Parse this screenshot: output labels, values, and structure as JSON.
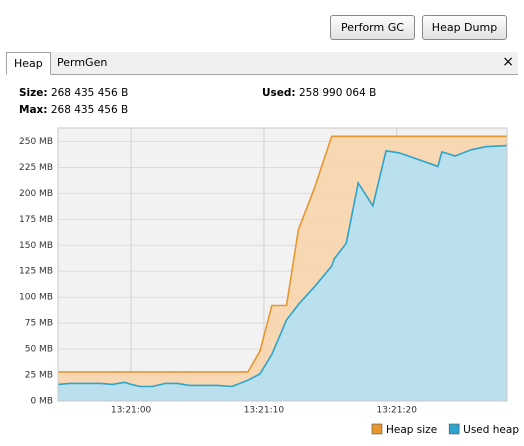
{
  "buttons": [
    "Perform GC",
    "Heap Dump"
  ],
  "tabs": [
    "Heap",
    "PermGen"
  ],
  "info": {
    "size_label": "Size:",
    "size": "268 435 456 B",
    "max_label": "Max:",
    "max": "268 435 456 B",
    "used_label": "Used:",
    "used": "258 990 064 B"
  },
  "chart_data": {
    "type": "area",
    "x": [
      -5.5,
      -4.6,
      -3.5,
      -2.3,
      -1.4,
      -0.5,
      0,
      0.7,
      1.6,
      2.6,
      3.5,
      4.4,
      6.5,
      7.6,
      8.8,
      9.7,
      10.6,
      11.7,
      12.6,
      13.8,
      15.1,
      15.3,
      16.2,
      17.1,
      18.2,
      19.2,
      20.2,
      23.1,
      23.4,
      24.4,
      25.6,
      26.7,
      28.3
    ],
    "series": [
      {
        "name": "Heap size",
        "color": "#e8962e",
        "fill": "#f8d3a8",
        "values": [
          28,
          28,
          28,
          28,
          28,
          28,
          28,
          28,
          28,
          28,
          28,
          28,
          28,
          28,
          28,
          48,
          92,
          92,
          165,
          205,
          255,
          255,
          255,
          255,
          255,
          255,
          255,
          255,
          255,
          255,
          255,
          255,
          255
        ]
      },
      {
        "name": "Used heap",
        "color": "#2ea3cc",
        "fill": "#aee2f6",
        "values": [
          16,
          17,
          17,
          17,
          16,
          18,
          16,
          14,
          14,
          17,
          17,
          15,
          15,
          14,
          20,
          26,
          45,
          78,
          93,
          110,
          130,
          137,
          152,
          210,
          188,
          241,
          239,
          226,
          240,
          236,
          242,
          245,
          246
        ]
      }
    ],
    "xlim": [
      -5.5,
      28.3
    ],
    "xticks": [
      {
        "value": 0,
        "label": "13:21:00"
      },
      {
        "value": 10,
        "label": "13:21:10"
      },
      {
        "value": 20,
        "label": "13:21:20"
      }
    ],
    "ylim": [
      0,
      263
    ],
    "yticks": [
      {
        "value": 0,
        "label": "0 MB"
      },
      {
        "value": 25,
        "label": "25 MB"
      },
      {
        "value": 50,
        "label": "50 MB"
      },
      {
        "value": 75,
        "label": "75 MB"
      },
      {
        "value": 100,
        "label": "100 MB"
      },
      {
        "value": 125,
        "label": "125 MB"
      },
      {
        "value": 150,
        "label": "150 MB"
      },
      {
        "value": 175,
        "label": "175 MB"
      },
      {
        "value": 200,
        "label": "200 MB"
      },
      {
        "value": 225,
        "label": "225 MB"
      },
      {
        "value": 250,
        "label": "250 MB"
      }
    ],
    "grid": true,
    "legend": "bottom-right"
  }
}
